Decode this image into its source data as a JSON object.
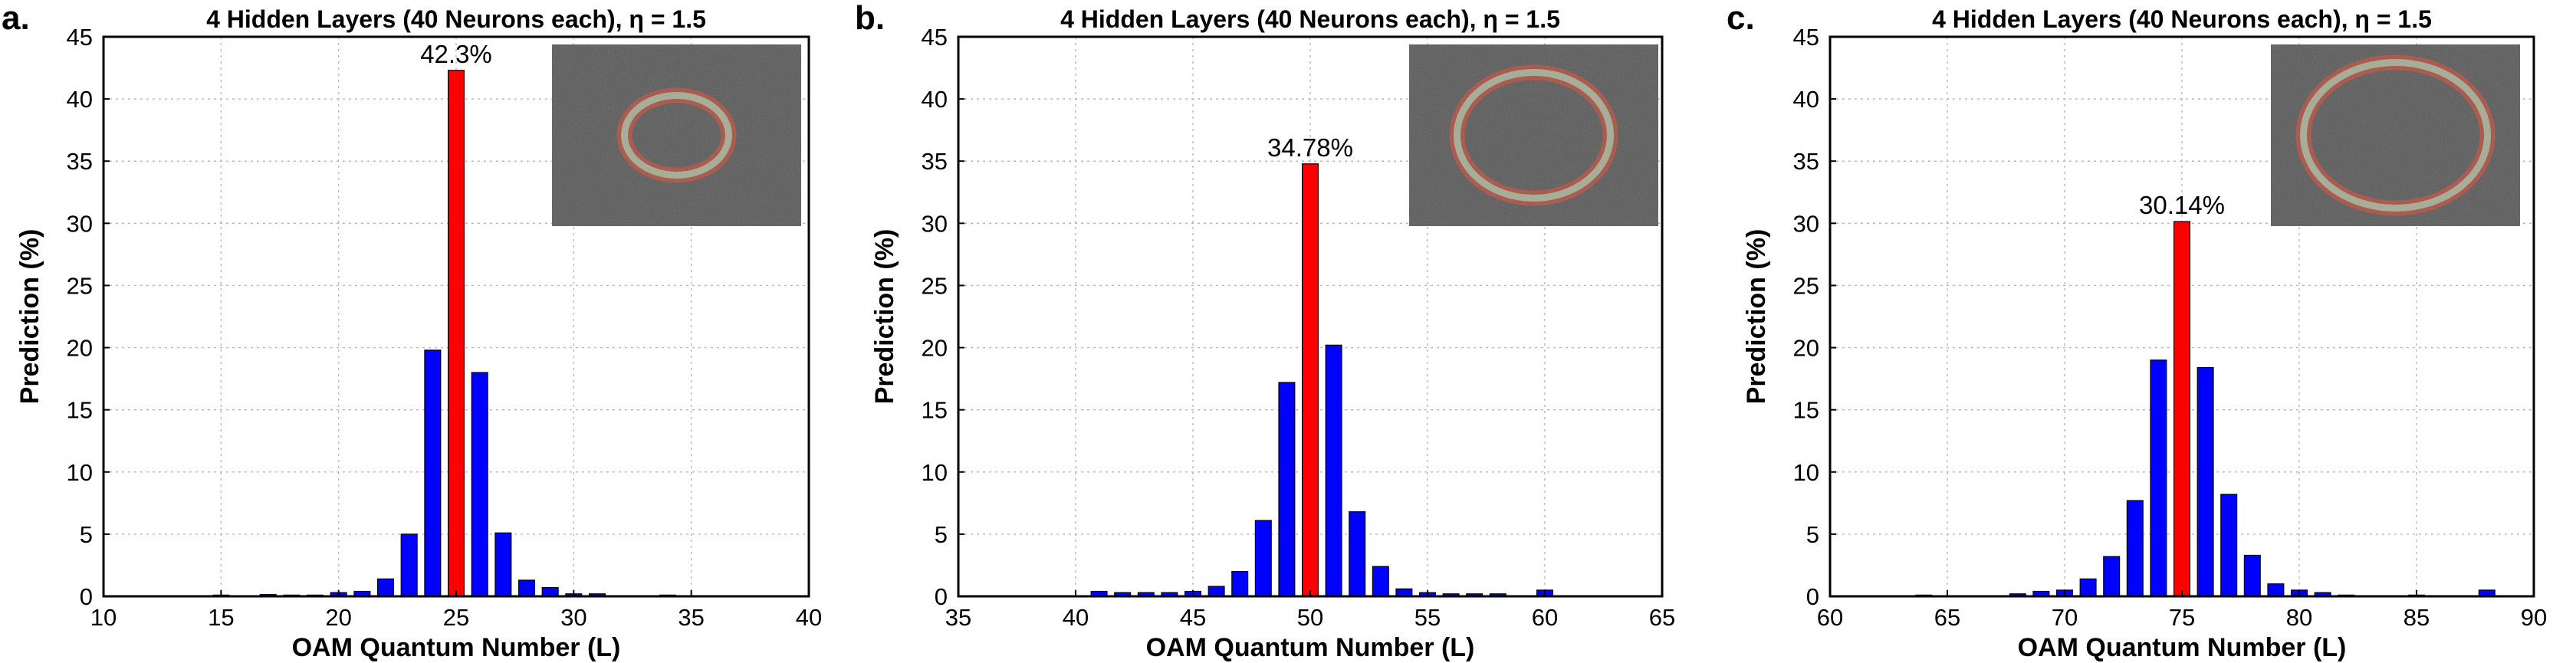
{
  "chart_data": [
    {
      "type": "bar",
      "panel_label": "a.",
      "title": "4 Hidden Layers (40 Neurons each), η = 1.5",
      "xlabel": "OAM Quantum Number (L)",
      "ylabel": "Prediction (%)",
      "xlim": [
        10,
        40
      ],
      "ylim": [
        0,
        45
      ],
      "xticks": [
        10,
        15,
        20,
        25,
        30,
        35,
        40
      ],
      "yticks": [
        0,
        5,
        10,
        15,
        20,
        25,
        30,
        35,
        40,
        45
      ],
      "grid": true,
      "colors": {
        "bar": "#0000ff",
        "highlight": "#ff0000"
      },
      "inset": "ring beam intensity image (top-right)",
      "highlight_x": 25,
      "highlight_label": "42.3%",
      "x": [
        15,
        17,
        18,
        19,
        20,
        21,
        22,
        23,
        24,
        25,
        26,
        27,
        28,
        29,
        30,
        31,
        34
      ],
      "values": [
        0.1,
        0.15,
        0.1,
        0.1,
        0.3,
        0.4,
        1.4,
        5.0,
        19.8,
        42.3,
        18.0,
        5.1,
        1.3,
        0.7,
        0.2,
        0.2,
        0.1
      ]
    },
    {
      "type": "bar",
      "panel_label": "b.",
      "title": "4 Hidden Layers (40 Neurons each), η = 1.5",
      "xlabel": "OAM Quantum Number (L)",
      "ylabel": "Prediction (%)",
      "xlim": [
        35,
        65
      ],
      "ylim": [
        0,
        45
      ],
      "xticks": [
        35,
        40,
        45,
        50,
        55,
        60,
        65
      ],
      "yticks": [
        0,
        5,
        10,
        15,
        20,
        25,
        30,
        35,
        40,
        45
      ],
      "grid": true,
      "colors": {
        "bar": "#0000ff",
        "highlight": "#ff0000"
      },
      "inset": "ring beam intensity image (top-right)",
      "highlight_x": 50,
      "highlight_label": "34.78%",
      "x": [
        41,
        42,
        43,
        44,
        45,
        46,
        47,
        48,
        49,
        50,
        51,
        52,
        53,
        54,
        55,
        56,
        57,
        58,
        60
      ],
      "values": [
        0.4,
        0.3,
        0.3,
        0.3,
        0.4,
        0.8,
        2.0,
        6.1,
        17.2,
        34.78,
        20.2,
        6.8,
        2.4,
        0.6,
        0.3,
        0.2,
        0.2,
        0.2,
        0.5
      ]
    },
    {
      "type": "bar",
      "panel_label": "c.",
      "title": "4 Hidden Layers (40 Neurons each), η = 1.5",
      "xlabel": "OAM Quantum Number (L)",
      "ylabel": "Prediction (%)",
      "xlim": [
        60,
        90
      ],
      "ylim": [
        0,
        45
      ],
      "xticks": [
        60,
        65,
        70,
        75,
        80,
        85,
        90
      ],
      "yticks": [
        0,
        5,
        10,
        15,
        20,
        25,
        30,
        35,
        40,
        45
      ],
      "grid": true,
      "colors": {
        "bar": "#0000ff",
        "highlight": "#ff0000"
      },
      "inset": "ring beam intensity image (top-right)",
      "highlight_x": 75,
      "highlight_label": "30.14%",
      "x": [
        64,
        68,
        69,
        70,
        71,
        72,
        73,
        74,
        75,
        76,
        77,
        78,
        79,
        80,
        81,
        82,
        85,
        88
      ],
      "values": [
        0.1,
        0.2,
        0.4,
        0.5,
        1.4,
        3.2,
        7.7,
        19.0,
        30.14,
        18.4,
        8.2,
        3.3,
        1.0,
        0.5,
        0.3,
        0.1,
        0.1,
        0.5
      ]
    }
  ]
}
